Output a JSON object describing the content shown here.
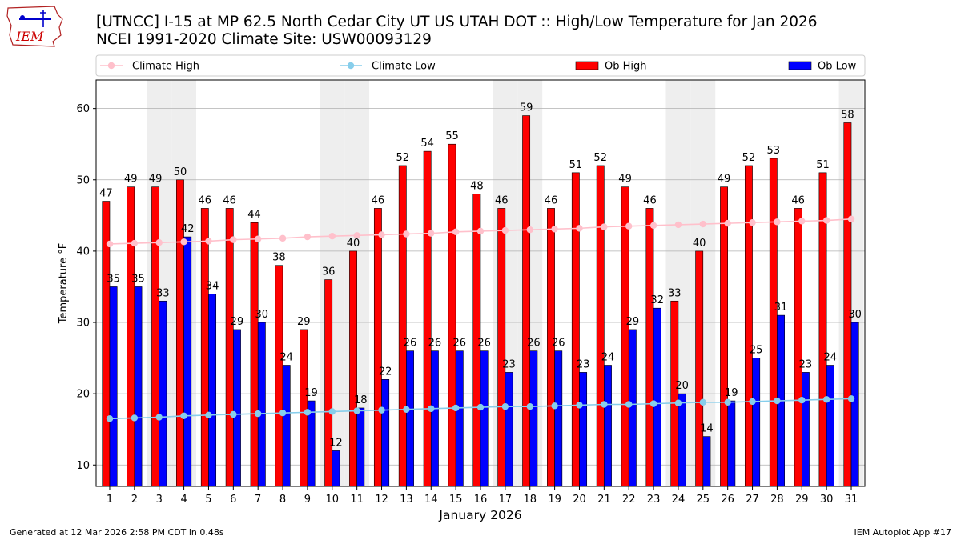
{
  "header": {
    "title_line1": "[UTNCC] I-15 at MP 62.5 North Cedar City UT US UTAH DOT :: High/Low Temperature for Jan 2026",
    "title_line2": "NCEI 1991-2020 Climate Site: USW00093129",
    "logo_text": "IEM"
  },
  "footer": {
    "left": "Generated at 12 Mar 2026 2:58 PM CDT in 0.48s",
    "right": "IEM Autoplot App #17"
  },
  "colors": {
    "ob_high": "#ff0000",
    "ob_low": "#0000ff",
    "climate_high": "#ffc0cb",
    "climate_low": "#87ceeb",
    "weekend_shade": "#eeeeee",
    "grid": "#b0b0b0"
  },
  "chart_data": {
    "type": "bar",
    "title": "[UTNCC] I-15 at MP 62.5 North Cedar City UT US UTAH DOT :: High/Low Temperature for Jan 2026",
    "xlabel": "January 2026",
    "ylabel": "Temperature °F",
    "ylim": [
      7,
      64
    ],
    "yticks": [
      10,
      20,
      30,
      40,
      50,
      60
    ],
    "grid": "horizontal",
    "legend_position": "top",
    "categories": [
      "1",
      "2",
      "3",
      "4",
      "5",
      "6",
      "7",
      "8",
      "9",
      "10",
      "11",
      "12",
      "13",
      "14",
      "15",
      "16",
      "17",
      "18",
      "19",
      "20",
      "21",
      "22",
      "23",
      "24",
      "25",
      "26",
      "27",
      "28",
      "29",
      "30",
      "31"
    ],
    "weekend_days": [
      3,
      4,
      10,
      11,
      17,
      18,
      24,
      25,
      31
    ],
    "series": [
      {
        "name": "Climate High",
        "kind": "line",
        "values": [
          41.0,
          41.1,
          41.2,
          41.3,
          41.4,
          41.6,
          41.7,
          41.8,
          42.0,
          42.1,
          42.2,
          42.3,
          42.4,
          42.5,
          42.7,
          42.8,
          42.9,
          43.0,
          43.1,
          43.2,
          43.4,
          43.5,
          43.6,
          43.7,
          43.8,
          43.9,
          44.0,
          44.1,
          44.2,
          44.3,
          44.5
        ]
      },
      {
        "name": "Climate Low",
        "kind": "line",
        "values": [
          16.5,
          16.6,
          16.7,
          16.9,
          17.0,
          17.1,
          17.2,
          17.3,
          17.4,
          17.5,
          17.6,
          17.7,
          17.8,
          17.9,
          18.0,
          18.1,
          18.2,
          18.2,
          18.3,
          18.4,
          18.5,
          18.5,
          18.6,
          18.7,
          18.8,
          18.8,
          18.9,
          19.0,
          19.1,
          19.2,
          19.3
        ]
      },
      {
        "name": "Ob High",
        "kind": "bar",
        "values": [
          47,
          49,
          49,
          50,
          46,
          46,
          44,
          38,
          29,
          36,
          40,
          46,
          52,
          54,
          55,
          48,
          46,
          59,
          46,
          51,
          52,
          49,
          46,
          33,
          40,
          49,
          52,
          53,
          46,
          51,
          58
        ]
      },
      {
        "name": "Ob Low",
        "kind": "bar",
        "values": [
          35,
          35,
          33,
          42,
          34,
          29,
          30,
          24,
          19,
          12,
          18,
          22,
          26,
          26,
          26,
          26,
          23,
          26,
          26,
          23,
          24,
          29,
          32,
          20,
          14,
          19,
          25,
          31,
          23,
          24,
          30
        ]
      }
    ]
  }
}
